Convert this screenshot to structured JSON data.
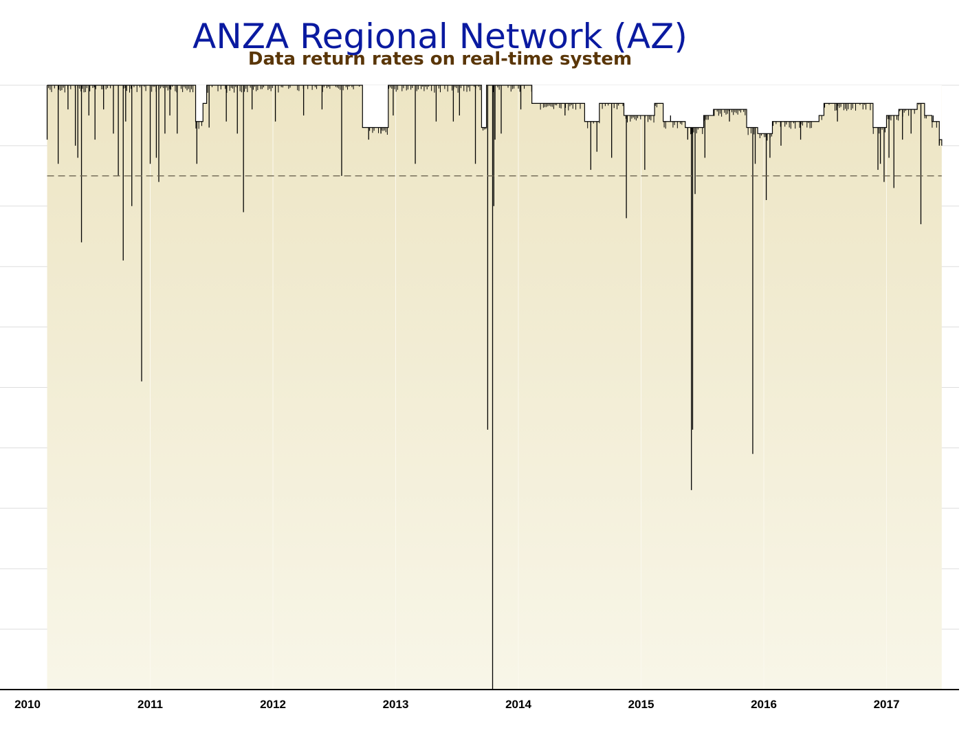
{
  "chart_data": {
    "type": "area",
    "title": "ANZA Regional Network (AZ)",
    "subtitle": "Data return rates on real-time system",
    "xlabel": "",
    "ylabel": "",
    "x_ticks": [
      "2010",
      "2011",
      "2012",
      "2013",
      "2014",
      "2015",
      "2016",
      "2017"
    ],
    "xlim": [
      2010.0,
      2017.98
    ],
    "ylim": [
      0,
      100
    ],
    "y_gridlines": [
      10,
      20,
      30,
      40,
      50,
      60,
      70,
      80,
      90,
      100
    ],
    "grid": true,
    "reference_line": 85,
    "colors": {
      "title": "#0a1aa0",
      "subtitle": "#5a3608",
      "fill_top": "#ede5c4",
      "fill_bottom": "#f8f6e8",
      "line": "#000000",
      "reference": "#6b6350",
      "grid": "#dddddd"
    },
    "series": [
      {
        "values": [
          [
            2010.16,
            100
          ],
          [
            2010.6,
            100
          ],
          [
            2011.34,
            100
          ],
          [
            2011.37,
            94
          ],
          [
            2011.43,
            97
          ],
          [
            2011.46,
            100
          ],
          [
            2012.72,
            100
          ],
          [
            2012.73,
            93
          ],
          [
            2012.93,
            93
          ],
          [
            2012.94,
            100
          ],
          [
            2013.58,
            100
          ],
          [
            2013.69,
            100
          ],
          [
            2013.7,
            93
          ],
          [
            2013.73,
            93
          ],
          [
            2013.74,
            100
          ],
          [
            2014.1,
            100
          ],
          [
            2014.11,
            97
          ],
          [
            2014.53,
            97
          ],
          [
            2014.54,
            94
          ],
          [
            2014.65,
            94
          ],
          [
            2014.66,
            97
          ],
          [
            2014.85,
            97
          ],
          [
            2014.86,
            95
          ],
          [
            2015.1,
            95
          ],
          [
            2015.11,
            97
          ],
          [
            2015.17,
            97
          ],
          [
            2015.18,
            94
          ],
          [
            2015.35,
            94
          ],
          [
            2015.36,
            93
          ],
          [
            2015.5,
            93
          ],
          [
            2015.51,
            95
          ],
          [
            2015.58,
            95
          ],
          [
            2015.59,
            96
          ],
          [
            2015.85,
            96
          ],
          [
            2015.86,
            93
          ],
          [
            2015.94,
            93
          ],
          [
            2015.95,
            92
          ],
          [
            2016.06,
            92
          ],
          [
            2016.07,
            94
          ],
          [
            2016.44,
            94
          ],
          [
            2016.45,
            95
          ],
          [
            2016.48,
            95
          ],
          [
            2016.49,
            97
          ],
          [
            2016.88,
            97
          ],
          [
            2016.89,
            93
          ],
          [
            2016.96,
            93
          ],
          [
            2017.0,
            95
          ],
          [
            2017.1,
            96
          ],
          [
            2017.24,
            96
          ],
          [
            2017.25,
            97
          ],
          [
            2017.3,
            97
          ],
          [
            2017.31,
            95
          ],
          [
            2017.36,
            95
          ],
          [
            2017.37,
            94
          ],
          [
            2017.42,
            94
          ],
          [
            2017.43,
            91
          ],
          [
            2017.45,
            90
          ]
        ],
        "dips": [
          [
            2010.16,
            91
          ],
          [
            2010.25,
            87
          ],
          [
            2010.33,
            96
          ],
          [
            2010.39,
            90
          ],
          [
            2010.41,
            88
          ],
          [
            2010.44,
            74
          ],
          [
            2010.5,
            95
          ],
          [
            2010.55,
            91
          ],
          [
            2010.62,
            96
          ],
          [
            2010.7,
            92
          ],
          [
            2010.74,
            85
          ],
          [
            2010.78,
            71
          ],
          [
            2010.8,
            94
          ],
          [
            2010.85,
            80
          ],
          [
            2010.93,
            51
          ],
          [
            2011.0,
            87
          ],
          [
            2011.05,
            88
          ],
          [
            2011.07,
            84
          ],
          [
            2011.12,
            92
          ],
          [
            2011.16,
            95
          ],
          [
            2011.22,
            92
          ],
          [
            2011.38,
            87
          ],
          [
            2011.48,
            93
          ],
          [
            2011.62,
            94
          ],
          [
            2011.71,
            92
          ],
          [
            2011.76,
            79
          ],
          [
            2011.83,
            96
          ],
          [
            2012.02,
            94
          ],
          [
            2012.25,
            95
          ],
          [
            2012.4,
            96
          ],
          [
            2012.56,
            85
          ],
          [
            2012.78,
            91
          ],
          [
            2012.88,
            92
          ],
          [
            2012.98,
            95
          ],
          [
            2013.16,
            87
          ],
          [
            2013.33,
            94
          ],
          [
            2013.47,
            94
          ],
          [
            2013.52,
            95
          ],
          [
            2013.65,
            87
          ],
          [
            2013.71,
            93
          ],
          [
            2013.75,
            43
          ],
          [
            2013.79,
            0
          ],
          [
            2013.8,
            80
          ],
          [
            2013.81,
            91
          ],
          [
            2013.86,
            92
          ],
          [
            2014.02,
            96
          ],
          [
            2014.21,
            97
          ],
          [
            2014.38,
            95
          ],
          [
            2014.59,
            86
          ],
          [
            2014.64,
            89
          ],
          [
            2014.76,
            88
          ],
          [
            2014.88,
            78
          ],
          [
            2015.03,
            86
          ],
          [
            2015.24,
            95
          ],
          [
            2015.38,
            91
          ],
          [
            2015.41,
            33
          ],
          [
            2015.42,
            43
          ],
          [
            2015.44,
            82
          ],
          [
            2015.52,
            88
          ],
          [
            2015.72,
            94
          ],
          [
            2015.91,
            39
          ],
          [
            2015.93,
            87
          ],
          [
            2016.02,
            81
          ],
          [
            2016.05,
            88
          ],
          [
            2016.14,
            90
          ],
          [
            2016.3,
            91
          ],
          [
            2016.6,
            94
          ],
          [
            2016.93,
            86
          ],
          [
            2016.95,
            87
          ],
          [
            2016.98,
            84
          ],
          [
            2017.02,
            88
          ],
          [
            2017.06,
            83
          ],
          [
            2017.13,
            91
          ],
          [
            2017.2,
            92
          ],
          [
            2017.28,
            77
          ],
          [
            2017.38,
            95
          ],
          [
            2017.43,
            90
          ]
        ]
      }
    ]
  }
}
